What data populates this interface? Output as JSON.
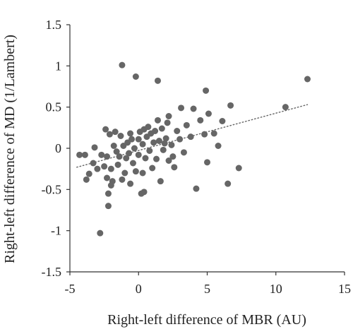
{
  "chart_data": {
    "type": "scatter",
    "xlabel": "Right-left difference of MBR (AU)",
    "ylabel": "Right-left difference of MD (1/Lambert)",
    "xlim": [
      -5,
      15
    ],
    "ylim": [
      -1.5,
      1.5
    ],
    "x_ticks": [
      -5,
      0,
      5,
      10,
      15
    ],
    "y_ticks": [
      -1.5,
      -1,
      -0.5,
      0,
      0.5,
      1,
      1.5
    ],
    "x_tick_labels": [
      "-5",
      "0",
      "5",
      "10",
      "15"
    ],
    "y_tick_labels": [
      "-1.5",
      "-1",
      "-0.5",
      "0",
      "0.5",
      "1",
      "1.5"
    ],
    "grid": false,
    "legend": "none",
    "marker_color": "#666666",
    "trendline": {
      "style": "dotted",
      "color": "#666666",
      "x": [
        -4.5,
        12.3
      ],
      "y": [
        -0.23,
        0.53
      ]
    },
    "points": [
      [
        -4.3,
        -0.08
      ],
      [
        -3.9,
        -0.08
      ],
      [
        -3.8,
        -0.38
      ],
      [
        -3.6,
        -0.31
      ],
      [
        -3.3,
        -0.18
      ],
      [
        -3.2,
        0.01
      ],
      [
        -3.0,
        -0.25
      ],
      [
        -2.8,
        -1.03
      ],
      [
        -2.7,
        -0.08
      ],
      [
        -2.5,
        -0.22
      ],
      [
        -2.4,
        0.23
      ],
      [
        -2.3,
        -0.1
      ],
      [
        -2.3,
        -0.36
      ],
      [
        -2.2,
        -0.55
      ],
      [
        -2.2,
        -0.7
      ],
      [
        -2.1,
        0.17
      ],
      [
        -2.0,
        -0.25
      ],
      [
        -2.0,
        -0.45
      ],
      [
        -1.9,
        -0.4
      ],
      [
        -1.8,
        0.03
      ],
      [
        -1.7,
        0.2
      ],
      [
        -1.6,
        -0.04
      ],
      [
        -1.5,
        -0.2
      ],
      [
        -1.4,
        -0.1
      ],
      [
        -1.3,
        0.15
      ],
      [
        -1.2,
        -0.38
      ],
      [
        -1.2,
        1.01
      ],
      [
        -1.1,
        0.03
      ],
      [
        -1.0,
        -0.3
      ],
      [
        -0.9,
        -0.12
      ],
      [
        -0.8,
        0.07
      ],
      [
        -0.7,
        -0.06
      ],
      [
        -0.6,
        0.18
      ],
      [
        -0.6,
        -0.43
      ],
      [
        -0.5,
        0.11
      ],
      [
        -0.4,
        -0.18
      ],
      [
        -0.3,
        0.0
      ],
      [
        -0.2,
        0.87
      ],
      [
        -0.2,
        -0.28
      ],
      [
        0.0,
        0.11
      ],
      [
        0.0,
        -0.08
      ],
      [
        0.1,
        0.2
      ],
      [
        0.2,
        -0.55
      ],
      [
        0.3,
        0.05
      ],
      [
        0.3,
        -0.3
      ],
      [
        0.4,
        -0.53
      ],
      [
        0.4,
        0.23
      ],
      [
        0.5,
        -0.12
      ],
      [
        0.6,
        0.14
      ],
      [
        0.7,
        0.26
      ],
      [
        0.8,
        -0.03
      ],
      [
        0.9,
        0.18
      ],
      [
        1.0,
        -0.24
      ],
      [
        1.1,
        0.07
      ],
      [
        1.2,
        0.21
      ],
      [
        1.3,
        -0.13
      ],
      [
        1.4,
        0.34
      ],
      [
        1.4,
        0.82
      ],
      [
        1.5,
        0.09
      ],
      [
        1.6,
        -0.4
      ],
      [
        1.7,
        0.24
      ],
      [
        1.8,
        -0.02
      ],
      [
        1.9,
        0.06
      ],
      [
        2.0,
        0.12
      ],
      [
        2.1,
        0.31
      ],
      [
        2.2,
        -0.15
      ],
      [
        2.2,
        0.39
      ],
      [
        2.4,
        0.04
      ],
      [
        2.5,
        -0.1
      ],
      [
        2.6,
        -0.23
      ],
      [
        2.8,
        0.21
      ],
      [
        3.0,
        0.11
      ],
      [
        3.1,
        0.49
      ],
      [
        3.3,
        -0.05
      ],
      [
        3.5,
        0.28
      ],
      [
        3.8,
        0.14
      ],
      [
        4.0,
        0.48
      ],
      [
        4.2,
        -0.49
      ],
      [
        4.5,
        0.34
      ],
      [
        4.8,
        0.17
      ],
      [
        4.9,
        0.7
      ],
      [
        5.0,
        -0.17
      ],
      [
        5.1,
        0.42
      ],
      [
        5.5,
        0.18
      ],
      [
        5.8,
        0.03
      ],
      [
        6.1,
        0.33
      ],
      [
        6.5,
        -0.43
      ],
      [
        6.7,
        0.52
      ],
      [
        7.3,
        -0.24
      ],
      [
        10.7,
        0.5
      ],
      [
        12.3,
        0.84
      ]
    ]
  }
}
